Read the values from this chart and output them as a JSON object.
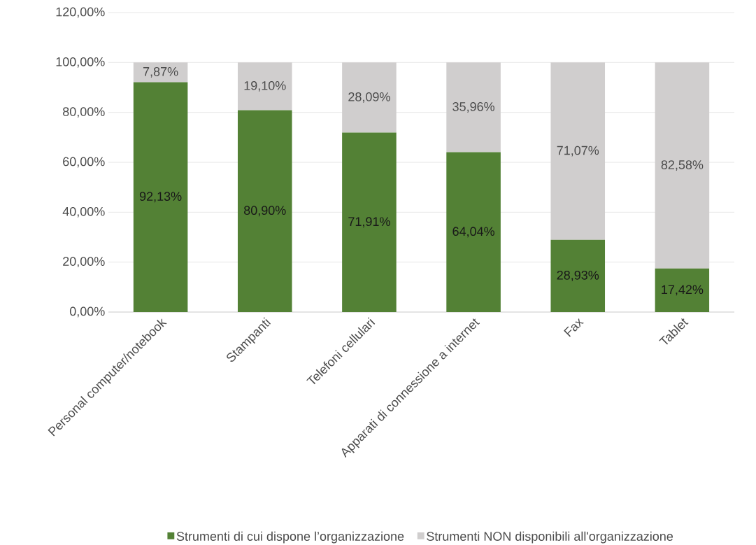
{
  "chart_data": {
    "type": "bar",
    "stacked": true,
    "categories": [
      "Personal computer/notebook",
      "Stampanti",
      "Telefoni cellulari",
      "Apparati di connessione a internet",
      "Fax",
      "Tablet"
    ],
    "series": [
      {
        "name": "Strumenti di cui dispone l’organizzazione",
        "color": "#538135",
        "values": [
          92.13,
          80.9,
          71.91,
          64.04,
          28.93,
          17.42
        ],
        "value_labels": [
          "92,13%",
          "80,90%",
          "71,91%",
          "64,04%",
          "28,93%",
          "17,42%"
        ]
      },
      {
        "name": "Strumenti NON disponibili all'organizzazione",
        "color": "#d0cece",
        "values": [
          7.87,
          19.1,
          28.09,
          35.96,
          71.07,
          82.58
        ],
        "value_labels": [
          "7,87%",
          "19,10%",
          "28,09%",
          "35,96%",
          "71,07%",
          "82,58%"
        ]
      }
    ],
    "ylim": [
      0,
      120
    ],
    "yticks": [
      {
        "value": 0,
        "label": "0,00%"
      },
      {
        "value": 20,
        "label": "20,00%"
      },
      {
        "value": 40,
        "label": "40,00%"
      },
      {
        "value": 60,
        "label": "60,00%"
      },
      {
        "value": 80,
        "label": "80,00%"
      },
      {
        "value": 100,
        "label": "100,00%"
      },
      {
        "value": 120,
        "label": "120,00%"
      }
    ],
    "grid": "y",
    "legend": "bottom"
  }
}
